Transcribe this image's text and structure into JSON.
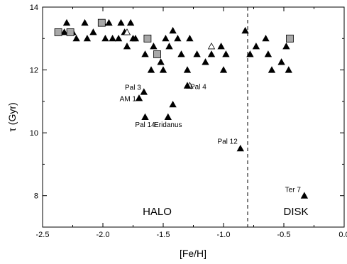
{
  "chart_data": {
    "type": "scatter",
    "xlabel": "[Fe/H]",
    "ylabel": "τ (Gyr)",
    "xlim": [
      -2.5,
      0.0
    ],
    "ylim": [
      7,
      14
    ],
    "xticks": [
      "-2.5",
      "-2.0",
      "-1.5",
      "-1.0",
      "-0.5",
      "0.0"
    ],
    "yticks": [
      "8",
      "10",
      "12",
      "14"
    ],
    "grid": false,
    "legend": "none",
    "divider_x": -0.8,
    "regions": [
      {
        "label": "HALO",
        "x": -1.55,
        "y": 7.5
      },
      {
        "label": "DISK",
        "x": -0.4,
        "y": 7.5
      }
    ],
    "series": [
      {
        "marker": "filled-triangle",
        "points": [
          [
            -2.32,
            13.2
          ],
          [
            -2.3,
            13.5
          ],
          [
            -2.25,
            13.2
          ],
          [
            -2.22,
            13.0
          ],
          [
            -2.15,
            13.5
          ],
          [
            -2.13,
            13.0
          ],
          [
            -2.08,
            13.2
          ],
          [
            -2.0,
            13.5
          ],
          [
            -1.98,
            13.0
          ],
          [
            -1.95,
            13.5
          ],
          [
            -1.92,
            13.0
          ],
          [
            -1.87,
            13.0
          ],
          [
            -1.85,
            13.5
          ],
          [
            -1.82,
            13.2
          ],
          [
            -1.8,
            12.75
          ],
          [
            -1.77,
            13.5
          ],
          [
            -1.75,
            13.0
          ],
          [
            -1.73,
            13.0
          ],
          [
            -1.65,
            12.5
          ],
          [
            -1.6,
            12.0
          ],
          [
            -1.58,
            12.75
          ],
          [
            -1.55,
            12.5
          ],
          [
            -1.52,
            12.25
          ],
          [
            -1.5,
            12.0
          ],
          [
            -1.48,
            13.0
          ],
          [
            -1.45,
            12.75
          ],
          [
            -1.42,
            13.25
          ],
          [
            -1.38,
            13.0
          ],
          [
            -1.35,
            12.5
          ],
          [
            -1.3,
            12.0
          ],
          [
            -1.28,
            13.0
          ],
          [
            -1.22,
            12.5
          ],
          [
            -1.15,
            12.25
          ],
          [
            -1.1,
            12.5
          ],
          [
            -1.02,
            12.75
          ],
          [
            -1.0,
            12.0
          ],
          [
            -0.98,
            12.5
          ],
          [
            -0.82,
            13.25
          ],
          [
            -0.78,
            12.5
          ],
          [
            -0.73,
            12.75
          ],
          [
            -0.65,
            13.0
          ],
          [
            -0.63,
            12.5
          ],
          [
            -0.6,
            12.0
          ],
          [
            -0.52,
            12.25
          ],
          [
            -0.48,
            12.75
          ],
          [
            -0.46,
            12.0
          ]
        ]
      },
      {
        "marker": "open-triangle",
        "points": [
          [
            -1.8,
            13.2
          ],
          [
            -1.1,
            12.75
          ],
          [
            -1.28,
            11.5
          ]
        ]
      },
      {
        "marker": "gray-square",
        "points": [
          [
            -2.37,
            13.2
          ],
          [
            -2.27,
            13.2
          ],
          [
            -2.01,
            13.5
          ],
          [
            -1.63,
            13.0
          ],
          [
            -1.55,
            12.5
          ],
          [
            -0.45,
            13.0
          ]
        ]
      }
    ],
    "labeled_points": [
      {
        "label": "Pal 3",
        "x": -1.66,
        "y": 11.3
      },
      {
        "label": "AM 1",
        "x": -1.7,
        "y": 11.1
      },
      {
        "label": "Pal 4",
        "x": -1.3,
        "y": 11.5
      },
      {
        "label": "Pal 14",
        "x": -1.65,
        "y": 10.5
      },
      {
        "label": "Eridanus",
        "x": -1.46,
        "y": 10.5
      },
      {
        "label": "Pal 12",
        "x": -0.86,
        "y": 9.5
      },
      {
        "label": "Ter 7",
        "x": -0.33,
        "y": 8.0
      },
      {
        "label": "",
        "x": -1.42,
        "y": 10.9
      }
    ]
  }
}
